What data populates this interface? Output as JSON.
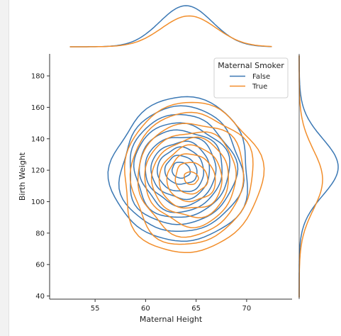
{
  "chart_data": {
    "type": "kde-joint",
    "xlabel": "Maternal Height",
    "ylabel": "Birth Weight",
    "xlim": [
      50.5,
      74.5
    ],
    "ylim": [
      38,
      194
    ],
    "xticks": [
      55,
      60,
      65,
      70
    ],
    "yticks": [
      40,
      60,
      80,
      100,
      120,
      140,
      160,
      180
    ],
    "legend": {
      "title": "Maternal Smoker",
      "placement": "top-right"
    },
    "series": [
      {
        "name": "False",
        "color": "#3b78b4",
        "center": [
          63.5,
          120
        ],
        "contour_radii": [
          [
            6.8,
            46
          ],
          [
            6.0,
            40
          ],
          [
            5.3,
            35
          ],
          [
            4.7,
            30
          ],
          [
            4.1,
            26
          ],
          [
            3.5,
            22
          ],
          [
            2.9,
            18
          ],
          [
            2.3,
            14
          ],
          [
            1.6,
            9
          ],
          [
            0.9,
            5
          ]
        ],
        "marginal_x": {
          "mean": 64.0,
          "sd": 2.6
        },
        "marginal_y": {
          "mean": 122,
          "sd": 18
        }
      },
      {
        "name": "True",
        "color": "#f28e2b",
        "center": [
          64.5,
          115
        ],
        "contour_radii": [
          [
            6.8,
            48
          ],
          [
            6.0,
            42
          ],
          [
            5.2,
            36
          ],
          [
            4.5,
            30
          ],
          [
            3.8,
            25
          ],
          [
            3.1,
            20
          ],
          [
            2.4,
            15
          ],
          [
            1.6,
            10
          ],
          [
            0.7,
            4
          ]
        ],
        "marginal_x": {
          "mean": 64.3,
          "sd": 2.7
        },
        "marginal_y": {
          "mean": 114,
          "sd": 19
        }
      }
    ]
  }
}
